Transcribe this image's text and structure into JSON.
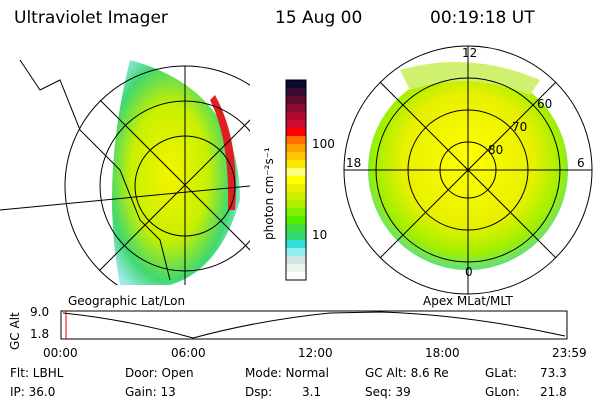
{
  "header": {
    "instrument": "Ultraviolet Imager",
    "date": "15 Aug 00",
    "time": "00:19:18 UT"
  },
  "colorbar": {
    "label": "photon cm⁻²s⁻¹",
    "ticks": [
      "100",
      "10"
    ],
    "colors": [
      "#0a0a30",
      "#3a0a30",
      "#600a30",
      "#8a0a30",
      "#b00a30",
      "#d00a30",
      "#ff0000",
      "#ff7000",
      "#ffa000",
      "#ffc800",
      "#ffe800",
      "#ffff80",
      "#ffff00",
      "#e8f000",
      "#d0f000",
      "#b0f000",
      "#80f000",
      "#50f000",
      "#40e040",
      "#30d870",
      "#30e0d8",
      "#90f0f0",
      "#d0e4e4",
      "#e8f4ec",
      "#ffffff"
    ]
  },
  "left_panel": {
    "label": "Geographic Lat/Lon"
  },
  "right_panel": {
    "label": "Apex MLat/MLT",
    "mlt": [
      "12",
      "18",
      "6",
      "0"
    ],
    "mlat": [
      "60",
      "70",
      "80"
    ]
  },
  "altitude_plot": {
    "ylabel": "GC Alt",
    "yticks": [
      "9.0",
      "1.8"
    ],
    "xticks": [
      "00:00",
      "06:00",
      "12:00",
      "18:00",
      "23:59"
    ],
    "marker_color": "#e00000"
  },
  "info": {
    "flt": "Flt: LBHL",
    "ip": "IP: 36.0",
    "door": "Door: Open",
    "gain": "Gain: 13",
    "mode": "Mode: Normal",
    "dsp_label": "Dsp:",
    "dsp_value": "3.1",
    "gcalt": "GC Alt: 8.6 Re",
    "seq": "Seq: 39",
    "glat_label": "GLat:",
    "glat_value": "73.3",
    "glon_label": "GLon:",
    "glon_value": "21.8"
  }
}
